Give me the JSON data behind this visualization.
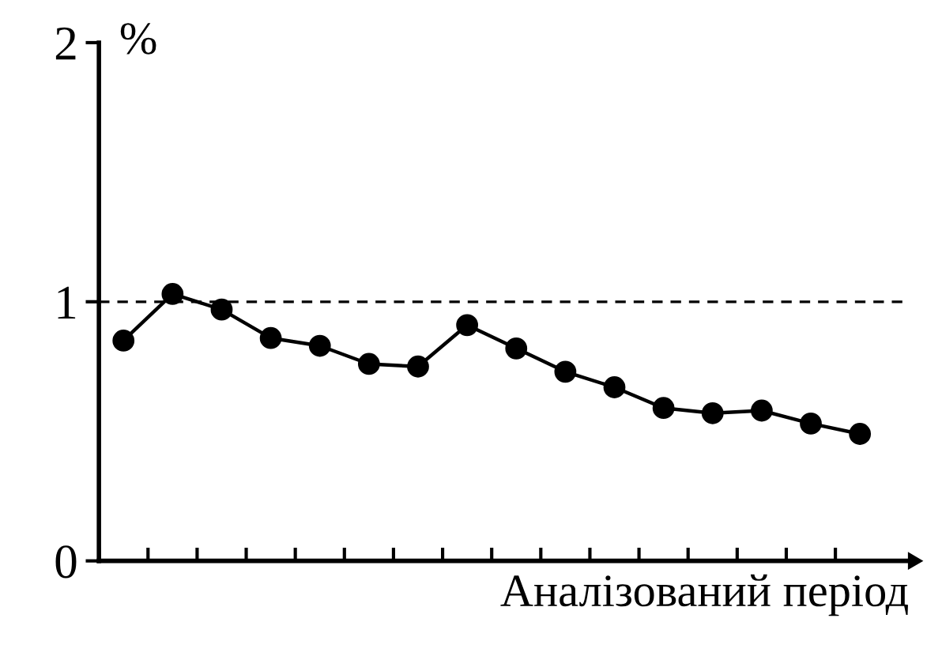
{
  "chart_data": {
    "type": "line",
    "xlabel": "Аналізований період",
    "ylabel": "%",
    "categories": [
      null,
      null,
      null,
      null,
      null,
      null,
      null,
      null,
      null,
      null,
      null,
      null,
      null,
      null,
      null,
      null
    ],
    "series": [
      {
        "color": "#000000",
        "values": [
          0.85,
          1.03,
          0.97,
          0.86,
          0.83,
          0.76,
          0.75,
          0.91,
          0.82,
          0.73,
          0.67,
          0.59,
          0.57,
          0.58,
          0.53,
          0.49
        ]
      }
    ],
    "ylim": [
      0,
      2
    ],
    "yticks": [
      0,
      1,
      2
    ],
    "marker": "circle",
    "line_style": "solid",
    "grid": false,
    "legend": false,
    "ref_lines": [
      {
        "axis": "y",
        "value": 1,
        "label": null,
        "color": "#000000",
        "line_style": "dashed"
      }
    ]
  }
}
